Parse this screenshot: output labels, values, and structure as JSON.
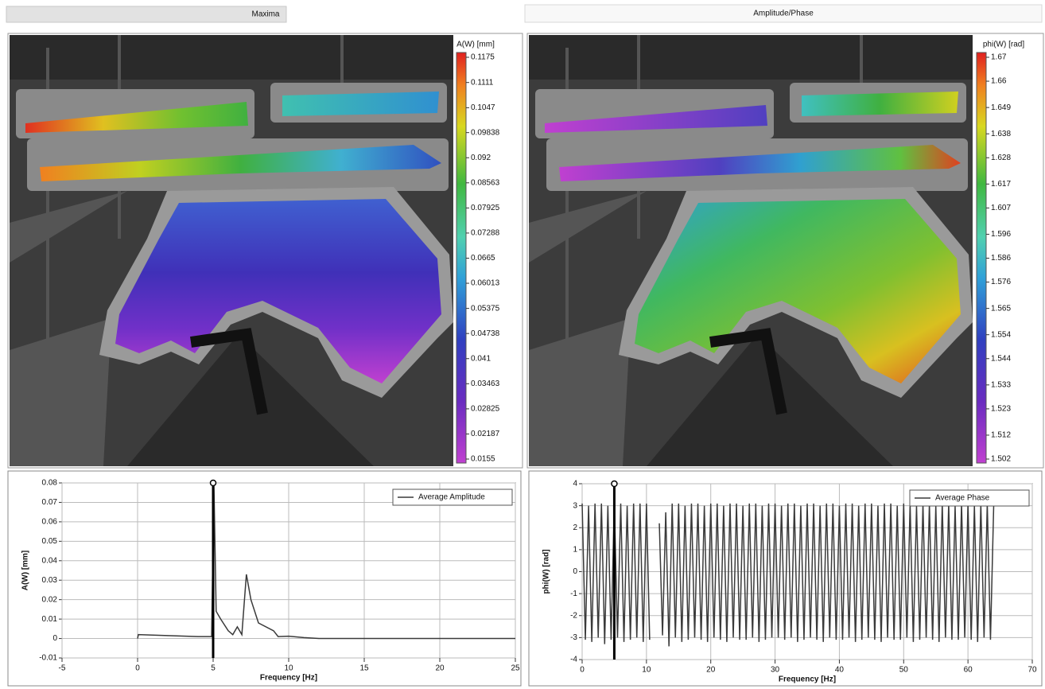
{
  "tabs": [
    "Maxima",
    "Amplitude/Phase"
  ],
  "panels": [
    {
      "colorbar": {
        "label": "A(W) [mm]",
        "ticks": [
          0.1175,
          0.1111,
          0.1047,
          0.09838,
          0.092,
          0.08563,
          0.07925,
          0.07288,
          0.0665,
          0.06013,
          0.05375,
          0.04738,
          0.041,
          0.03463,
          0.02825,
          0.02187,
          0.0155
        ]
      }
    },
    {
      "colorbar": {
        "label": "phi(W) [rad]",
        "ticks": [
          1.67,
          1.66,
          1.649,
          1.638,
          1.628,
          1.617,
          1.607,
          1.596,
          1.586,
          1.576,
          1.565,
          1.554,
          1.544,
          1.533,
          1.523,
          1.512,
          1.502
        ]
      }
    }
  ],
  "chart_data": [
    {
      "type": "line",
      "x_label": "Frequency [Hz]",
      "y_label": "A(W) [mm]",
      "xlim": [
        -5,
        25
      ],
      "ylim": [
        -0.01,
        0.08
      ],
      "xticks": [
        -5,
        0,
        5,
        10,
        15,
        20,
        25
      ],
      "yticks": [
        -0.01,
        0,
        0.01,
        0.02,
        0.03,
        0.04,
        0.05,
        0.06,
        0.07,
        0.08
      ],
      "grid": true,
      "legend": "upper right",
      "cursor_x": 5,
      "series": [
        {
          "name": "Average Amplitude",
          "color": "#3a3a3a",
          "x": [
            0,
            0.05,
            2,
            4,
            4.9,
            5.05,
            5.2,
            5.5,
            6,
            6.3,
            6.6,
            6.9,
            7.2,
            7.5,
            8,
            9,
            9.3,
            10,
            11,
            12,
            25
          ],
          "values": [
            0,
            0.002,
            0.0015,
            0.001,
            0.001,
            0.08,
            0.014,
            0.01,
            0.004,
            0.002,
            0.006,
            0.002,
            0.033,
            0.02,
            0.008,
            0.004,
            0.001,
            0.0012,
            0.0005,
            0,
            0
          ]
        }
      ]
    },
    {
      "type": "line",
      "x_label": "Frequency [Hz]",
      "y_label": "phi(W) [rad]",
      "xlim": [
        0,
        70
      ],
      "ylim": [
        -4,
        4
      ],
      "xticks": [
        0,
        10,
        20,
        30,
        40,
        50,
        60,
        70
      ],
      "yticks": [
        -4,
        -3,
        -2,
        -1,
        0,
        1,
        2,
        3,
        4
      ],
      "grid": true,
      "legend": "upper right",
      "cursor_x": 5,
      "series": [
        {
          "name": "Average Phase",
          "color": "#3a3a3a",
          "x": [
            0,
            0.5,
            1,
            1.5,
            2,
            2.5,
            3,
            3.5,
            4,
            4.5,
            5,
            5.5,
            6,
            6.5,
            7,
            7.5,
            8,
            8.5,
            9,
            9.5,
            10,
            10.5,
            11,
            11.5,
            12,
            12.5,
            13,
            13.5,
            14,
            14.5,
            15,
            15.5,
            16,
            16.5,
            17,
            17.5,
            18,
            18.5,
            19,
            19.5,
            20,
            20.5,
            21,
            21.5,
            22,
            22.5,
            23,
            23.5,
            24,
            24.5,
            25,
            25.5,
            26,
            26.5,
            27,
            27.5,
            28,
            28.5,
            29,
            29.5,
            30,
            30.5,
            31,
            31.5,
            32,
            32.5,
            33,
            33.5,
            34,
            34.5,
            35,
            35.5,
            36,
            36.5,
            37,
            37.5,
            38,
            38.5,
            39,
            39.5,
            40,
            40.5,
            41,
            41.5,
            42,
            42.5,
            43,
            43.5,
            44,
            44.5,
            45,
            45.5,
            46,
            46.5,
            47,
            47.5,
            48,
            48.5,
            49,
            49.5,
            50,
            50.5,
            51,
            51.5,
            52,
            52.5,
            53,
            53.5,
            54,
            54.5,
            55,
            55.5,
            56,
            56.5,
            57,
            57.5,
            58,
            58.5,
            59,
            59.5,
            60,
            60.5,
            61,
            61.5,
            62,
            62.5,
            63,
            63.5,
            64
          ],
          "values": [
            3.1,
            -3.1,
            3.0,
            -3.2,
            3.1,
            -3.0,
            3.1,
            -3.3,
            3.0,
            -3.1,
            3.1,
            -3.0,
            3.1,
            -3.2,
            3.0,
            -3.1,
            3.1,
            -3.0,
            3.1,
            -3.2,
            3.1,
            -3.1,
            null,
            null,
            2.2,
            -2.9,
            2.7,
            -3.4,
            3.1,
            -3.0,
            3.1,
            -3.2,
            3.0,
            -3.1,
            3.1,
            -3.0,
            3.1,
            -3.1,
            3.0,
            -3.2,
            3.1,
            -3.0,
            3.1,
            -3.1,
            3.0,
            -3.2,
            3.1,
            -3.0,
            3.1,
            -3.1,
            3.0,
            -3.1,
            3.1,
            -3.0,
            3.1,
            -3.2,
            3.0,
            -3.1,
            3.1,
            -3.0,
            3.1,
            -3.0,
            3.0,
            -3.1,
            3.1,
            -3.0,
            3.1,
            -3.2,
            3.0,
            -3.1,
            3.1,
            -3.0,
            3.1,
            -3.1,
            3.0,
            -3.2,
            3.1,
            -3.0,
            3.1,
            -3.1,
            3.0,
            -3.1,
            3.1,
            -3.0,
            3.1,
            -3.2,
            3.0,
            -3.1,
            3.1,
            -3.0,
            3.1,
            -3.1,
            3.0,
            -3.2,
            3.1,
            -3.0,
            3.1,
            -3.1,
            3.0,
            -3.1,
            3.1,
            -3.0,
            3.1,
            -3.2,
            3.0,
            -3.1,
            3.1,
            -3.0,
            3.1,
            -3.1,
            3.0,
            -3.2,
            3.1,
            -3.0,
            3.1,
            -3.1,
            3.0,
            -3.1,
            3.1,
            -3.0,
            3.1,
            -3.1,
            3.0,
            -3.2,
            3.1,
            -3.0,
            3.1,
            -3.1,
            3.0
          ]
        }
      ]
    }
  ]
}
